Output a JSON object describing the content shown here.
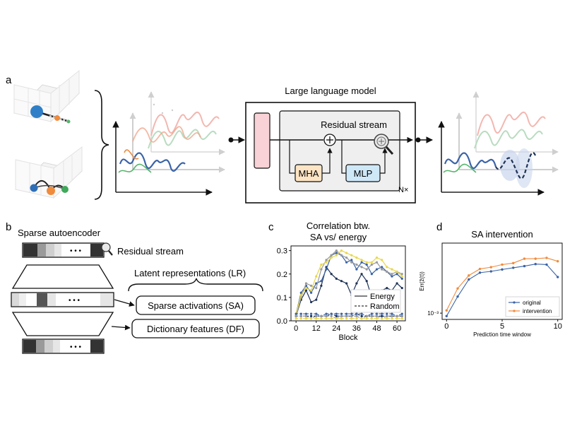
{
  "colors": {
    "blue": "#3a63a7",
    "navy": "#1f3357",
    "gray": "#9a9a9a",
    "yellow": "#e8d64a",
    "orange": "#f08a3c",
    "red": "#e05a5a",
    "green": "#55b56a",
    "mha_fill": "#fde4c4",
    "mlp_fill": "#cfe8f8",
    "embed_fill": "#f8d2d6",
    "panel_fill": "#f0f0f0"
  },
  "panel_a": {
    "letter": "a",
    "llm_title": "Large language model",
    "residual_label": "Residual stream",
    "mha_label": "MHA",
    "mlp_label": "MLP",
    "repeat_label": "N×"
  },
  "panel_b": {
    "letter": "b",
    "title": "Sparse autoencoder",
    "residual_label": "Residual stream",
    "latent_label": "Latent representations (LR)",
    "sa_label": "Sparse activations (SA)",
    "df_label": "Dictionary features (DF)",
    "dots": "• • •"
  },
  "panel_c": {
    "letter": "c",
    "chart_data": {
      "type": "line",
      "title": "Correlation btw. SA vs/ energy",
      "title_lines": [
        "Correlation btw.",
        "SA vs/ energy"
      ],
      "xlabel": "Block",
      "ylabel": "",
      "xlim": [
        -3,
        65
      ],
      "ylim": [
        0,
        0.32
      ],
      "xticks": [
        0,
        12,
        24,
        36,
        48,
        60
      ],
      "yticks": [
        0.0,
        0.1,
        0.2,
        0.3
      ],
      "ytick_labels": [
        "0.0",
        "0.1",
        "0.2",
        "0.3"
      ],
      "legend": {
        "placement": "lower-right",
        "entries": [
          "Energy",
          "Random"
        ]
      },
      "x": [
        0,
        3,
        6,
        9,
        12,
        15,
        18,
        21,
        24,
        27,
        30,
        33,
        36,
        39,
        42,
        45,
        48,
        51,
        54,
        57,
        60,
        63
      ],
      "series": [
        {
          "color": "#1f3357",
          "style": "solid",
          "values": [
            0.02,
            0.09,
            0.13,
            0.08,
            0.09,
            0.15,
            0.23,
            0.2,
            0.18,
            0.17,
            0.16,
            0.11,
            0.16,
            0.2,
            0.17,
            0.1,
            0.11,
            0.13,
            0.14,
            0.13,
            0.16,
            0.14
          ]
        },
        {
          "color": "#3a63a7",
          "style": "solid",
          "values": [
            0.03,
            0.12,
            0.15,
            0.12,
            0.16,
            0.17,
            0.22,
            0.28,
            0.29,
            0.28,
            0.25,
            0.26,
            0.22,
            0.25,
            0.24,
            0.2,
            0.22,
            0.23,
            0.21,
            0.19,
            0.2,
            0.18
          ]
        },
        {
          "color": "#9a9a9a",
          "style": "solid",
          "values": [
            0.02,
            0.1,
            0.16,
            0.15,
            0.14,
            0.22,
            0.26,
            0.28,
            0.3,
            0.28,
            0.27,
            0.25,
            0.24,
            0.23,
            0.22,
            0.24,
            0.25,
            0.22,
            0.21,
            0.2,
            0.21,
            0.2
          ]
        },
        {
          "color": "#e8d64a",
          "style": "solid",
          "values": [
            0.03,
            0.11,
            0.14,
            0.13,
            0.19,
            0.24,
            0.25,
            0.27,
            0.28,
            0.3,
            0.29,
            0.28,
            0.27,
            0.26,
            0.25,
            0.25,
            0.27,
            0.26,
            0.23,
            0.22,
            0.21,
            0.19
          ]
        },
        {
          "color": "#1f3357",
          "style": "dashed",
          "values": [
            0.02,
            0.02,
            0.02,
            0.02,
            0.02,
            0.02,
            0.02,
            0.03,
            0.02,
            0.02,
            0.02,
            0.02,
            0.03,
            0.02,
            0.02,
            0.02,
            0.02,
            0.02,
            0.02,
            0.02,
            0.02,
            0.02
          ]
        },
        {
          "color": "#3a63a7",
          "style": "dashed",
          "values": [
            0.03,
            0.03,
            0.03,
            0.03,
            0.03,
            0.02,
            0.03,
            0.03,
            0.03,
            0.03,
            0.03,
            0.03,
            0.03,
            0.03,
            0.02,
            0.03,
            0.03,
            0.03,
            0.03,
            0.03,
            0.02,
            0.03
          ]
        },
        {
          "color": "#9a9a9a",
          "style": "dashed",
          "values": [
            0.02,
            0.02,
            0.02,
            0.01,
            0.02,
            0.02,
            0.02,
            0.02,
            0.01,
            0.02,
            0.02,
            0.02,
            0.02,
            0.01,
            0.02,
            0.02,
            0.02,
            0.01,
            0.02,
            0.02,
            0.02,
            0.02
          ]
        },
        {
          "color": "#e8d64a",
          "style": "dashed",
          "values": [
            0.01,
            0.01,
            0.01,
            0.01,
            0.01,
            0.01,
            0.01,
            0.01,
            0.01,
            0.01,
            0.01,
            0.01,
            0.01,
            0.01,
            0.01,
            0.01,
            0.01,
            0.01,
            0.01,
            0.01,
            0.01,
            0.01
          ]
        }
      ]
    }
  },
  "panel_d": {
    "letter": "d",
    "chart_data": {
      "type": "line",
      "title": "SA intervention",
      "xlabel": "Prediction time window",
      "ylabel": "Err(ẑ(t))",
      "y_scale": "log",
      "xlim": [
        -0.4,
        10.4
      ],
      "ylim": [
        0.0008,
        0.012
      ],
      "xticks": [
        0,
        5,
        10
      ],
      "ytick_labels": [
        "10⁻³"
      ],
      "ytick_values": [
        0.001
      ],
      "legend": {
        "placement": "lower-right",
        "entries": [
          "original",
          "intervention"
        ]
      },
      "x": [
        0,
        1,
        2,
        3,
        4,
        5,
        6,
        7,
        8,
        9,
        10
      ],
      "series": [
        {
          "name": "original",
          "color": "#3a63a7",
          "values": [
            0.0009,
            0.0018,
            0.0033,
            0.0042,
            0.0044,
            0.0047,
            0.005,
            0.0053,
            0.0057,
            0.0056,
            0.0036
          ]
        },
        {
          "name": "intervention",
          "color": "#f08a3c",
          "values": [
            0.0011,
            0.0024,
            0.0038,
            0.0048,
            0.0051,
            0.0056,
            0.0059,
            0.0069,
            0.0069,
            0.0071,
            0.0063
          ]
        }
      ]
    }
  }
}
